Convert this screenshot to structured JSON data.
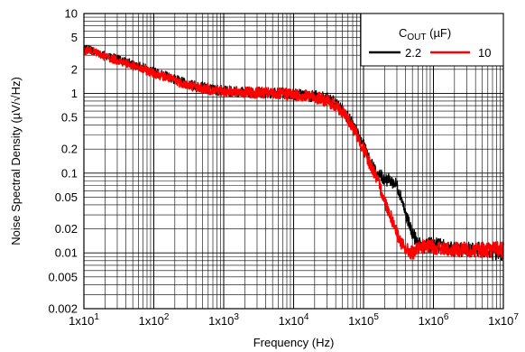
{
  "chart_data": {
    "type": "line",
    "title": "",
    "xlabel": "Frequency (Hz)",
    "ylabel": "Noise Spectral Density (µV/√Hz)",
    "xscale": "log",
    "yscale": "log",
    "xlim": [
      10,
      10000000
    ],
    "ylim": [
      0.002,
      10
    ],
    "grid": true,
    "x_ticks": [
      {
        "value": 10,
        "base": "1x10",
        "exp": "1"
      },
      {
        "value": 100,
        "base": "1x10",
        "exp": "2"
      },
      {
        "value": 1000,
        "base": "1x10",
        "exp": "3"
      },
      {
        "value": 10000,
        "base": "1x10",
        "exp": "4"
      },
      {
        "value": 100000,
        "base": "1x10",
        "exp": "5"
      },
      {
        "value": 1000000,
        "base": "1x10",
        "exp": "6"
      },
      {
        "value": 10000000,
        "base": "1x10",
        "exp": "7"
      }
    ],
    "y_ticks": [
      {
        "value": 10,
        "label": "10"
      },
      {
        "value": 5,
        "label": "5"
      },
      {
        "value": 2,
        "label": "2"
      },
      {
        "value": 1,
        "label": "1"
      },
      {
        "value": 0.5,
        "label": "0.5"
      },
      {
        "value": 0.2,
        "label": "0.2"
      },
      {
        "value": 0.1,
        "label": "0.1"
      },
      {
        "value": 0.05,
        "label": "0.05"
      },
      {
        "value": 0.02,
        "label": "0.02"
      },
      {
        "value": 0.01,
        "label": "0.01"
      },
      {
        "value": 0.005,
        "label": "0.005"
      },
      {
        "value": 0.002,
        "label": "0.002"
      }
    ],
    "legend": {
      "placement": "top-right",
      "title_main": "C",
      "title_sub": "OUT",
      "title_unit": " (µF)"
    },
    "series": [
      {
        "name": "2.2",
        "color": "#000000",
        "x": [
          10,
          12,
          15,
          20,
          30,
          40,
          50,
          70,
          100,
          150,
          200,
          300,
          500,
          700,
          1000,
          1500,
          2000,
          3000,
          5000,
          7000,
          10000,
          15000,
          20000,
          25000,
          30000,
          40000,
          50000,
          60000,
          70000,
          80000,
          100000,
          120000,
          150000,
          200000,
          250000,
          300000,
          350000,
          400000,
          500000,
          600000,
          700000,
          1000000,
          1500000,
          2000000,
          3000000,
          5000000,
          7000000,
          10000000
        ],
        "values": [
          3.5,
          3.6,
          3.3,
          3.0,
          2.7,
          2.5,
          2.3,
          2.1,
          1.85,
          1.65,
          1.5,
          1.3,
          1.2,
          1.12,
          1.08,
          1.05,
          1.04,
          1.03,
          1.02,
          1.0,
          0.98,
          0.95,
          0.92,
          0.88,
          0.85,
          0.75,
          0.62,
          0.5,
          0.4,
          0.32,
          0.22,
          0.15,
          0.1,
          0.085,
          0.08,
          0.07,
          0.05,
          0.03,
          0.018,
          0.013,
          0.012,
          0.013,
          0.012,
          0.011,
          0.011,
          0.011,
          0.01,
          0.01
        ]
      },
      {
        "name": "10",
        "color": "#ff0000",
        "x": [
          10,
          12,
          15,
          20,
          30,
          40,
          50,
          70,
          100,
          150,
          200,
          300,
          500,
          700,
          1000,
          1500,
          2000,
          3000,
          5000,
          7000,
          10000,
          15000,
          20000,
          25000,
          30000,
          40000,
          50000,
          60000,
          70000,
          80000,
          100000,
          120000,
          150000,
          180000,
          200000,
          250000,
          300000,
          350000,
          400000,
          500000,
          600000,
          700000,
          1000000,
          1500000,
          2000000,
          3000000,
          5000000,
          7000000,
          10000000
        ],
        "values": [
          3.4,
          3.5,
          3.2,
          2.9,
          2.6,
          2.4,
          2.2,
          2.0,
          1.8,
          1.6,
          1.45,
          1.28,
          1.15,
          1.1,
          1.06,
          1.04,
          1.03,
          1.02,
          1.0,
          0.98,
          0.96,
          0.93,
          0.9,
          0.85,
          0.8,
          0.7,
          0.58,
          0.47,
          0.38,
          0.3,
          0.2,
          0.14,
          0.09,
          0.06,
          0.045,
          0.028,
          0.018,
          0.013,
          0.011,
          0.01,
          0.011,
          0.012,
          0.012,
          0.011,
          0.011,
          0.011,
          0.011,
          0.011,
          0.011
        ]
      }
    ]
  }
}
